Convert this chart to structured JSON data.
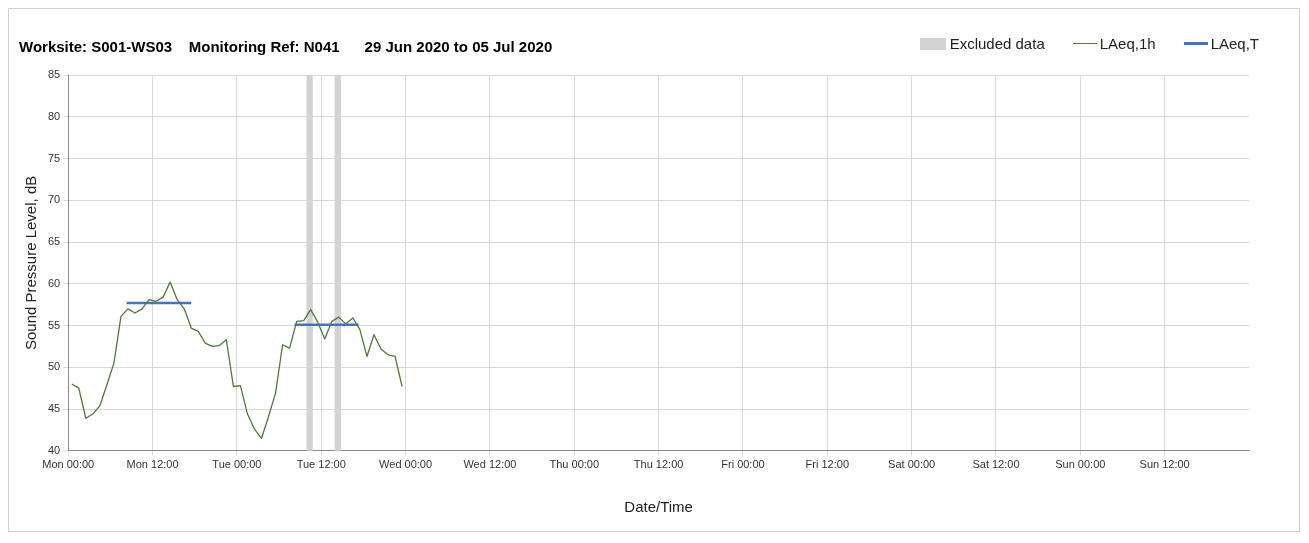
{
  "chart_data": {
    "type": "line",
    "title": "Worksite: S001-WS03    Monitoring Ref: N041      29 Jun 2020 to 05 Jul 2020",
    "xlabel": "Date/Time",
    "ylabel": "Sound Pressure Level, dB",
    "series": [
      {
        "name": "LAeq,1h",
        "color": "#4e7a3a",
        "x": [
          "2020-06-29T00:30",
          "2020-06-29T01:30",
          "2020-06-29T02:30",
          "2020-06-29T03:30",
          "2020-06-29T04:30",
          "2020-06-29T05:30",
          "2020-06-29T06:30",
          "2020-06-29T07:30",
          "2020-06-29T08:30",
          "2020-06-29T09:30",
          "2020-06-29T10:30",
          "2020-06-29T11:30",
          "2020-06-29T12:30",
          "2020-06-29T13:30",
          "2020-06-29T14:30",
          "2020-06-29T15:30",
          "2020-06-29T16:30",
          "2020-06-29T17:30",
          "2020-06-29T18:30",
          "2020-06-29T19:30",
          "2020-06-29T20:30",
          "2020-06-29T21:30",
          "2020-06-29T22:30",
          "2020-06-29T23:30",
          "2020-06-30T00:30",
          "2020-06-30T01:30",
          "2020-06-30T02:30",
          "2020-06-30T03:30",
          "2020-06-30T04:30",
          "2020-06-30T05:30",
          "2020-06-30T06:30",
          "2020-06-30T07:30",
          "2020-06-30T08:30",
          "2020-06-30T09:30",
          "2020-06-30T10:30",
          "2020-06-30T11:30",
          "2020-06-30T12:30",
          "2020-06-30T13:30",
          "2020-06-30T14:30",
          "2020-06-30T15:30",
          "2020-06-30T16:30",
          "2020-06-30T17:30",
          "2020-06-30T18:30",
          "2020-06-30T19:30",
          "2020-06-30T20:30",
          "2020-06-30T21:30",
          "2020-06-30T22:30",
          "2020-06-30T23:30"
        ],
        "values": [
          48.0,
          47.5,
          43.9,
          44.4,
          45.4,
          47.9,
          50.5,
          56.1,
          57.0,
          56.5,
          57.0,
          58.1,
          57.9,
          58.4,
          60.2,
          58.1,
          57.0,
          54.7,
          54.3,
          52.9,
          52.5,
          52.6,
          53.3,
          47.7,
          47.8,
          44.4,
          42.6,
          41.5,
          44.1,
          46.9,
          52.7,
          52.3,
          55.5,
          55.6,
          56.9,
          55.4,
          53.4,
          55.5,
          56.0,
          55.2,
          55.9,
          54.5,
          51.3,
          53.9,
          52.2,
          51.5,
          51.3,
          47.7
        ]
      },
      {
        "name": "LAeq,T",
        "color": "#4472c4",
        "x": [
          "2020-06-29T08:18",
          "2020-06-29T17:30",
          "2020-06-30T01:00",
          "2020-06-30T08:12",
          "2020-06-30T17:18"
        ],
        "values": [
          57.7,
          57.7,
          null,
          55.1,
          55.1
        ]
      }
    ],
    "bands": [
      {
        "axis": "x",
        "from": "2020-06-30T09:54",
        "to": "2020-06-30T10:48",
        "label": "Excluded data",
        "color": "#d3d3d3"
      },
      {
        "axis": "x",
        "from": "2020-06-30T13:54",
        "to": "2020-06-30T14:48",
        "color": "#d3d3d3"
      }
    ],
    "xlim": [
      "2020-06-29T00:00",
      "2020-07-06T00:00"
    ],
    "xticks": [
      {
        "value": "2020-06-29T00:00",
        "label": "Mon 00:00"
      },
      {
        "value": "2020-06-29T12:00",
        "label": "Mon 12:00"
      },
      {
        "value": "2020-06-30T00:00",
        "label": "Tue 00:00"
      },
      {
        "value": "2020-06-30T12:00",
        "label": "Tue 12:00"
      },
      {
        "value": "2020-07-01T00:00",
        "label": "Wed 00:00"
      },
      {
        "value": "2020-07-01T12:00",
        "label": "Wed 12:00"
      },
      {
        "value": "2020-07-02T00:00",
        "label": "Thu 00:00"
      },
      {
        "value": "2020-07-02T12:00",
        "label": "Thu 12:00"
      },
      {
        "value": "2020-07-03T00:00",
        "label": "Fri 00:00"
      },
      {
        "value": "2020-07-03T12:00",
        "label": "Fri 12:00"
      },
      {
        "value": "2020-07-04T00:00",
        "label": "Sat 00:00"
      },
      {
        "value": "2020-07-04T12:00",
        "label": "Sat 12:00"
      },
      {
        "value": "2020-07-05T00:00",
        "label": "Sun 00:00"
      },
      {
        "value": "2020-07-05T12:00",
        "label": "Sun 12:00"
      }
    ],
    "ylim": [
      40,
      85
    ],
    "yticks": [
      40,
      45,
      50,
      55,
      60,
      65,
      70,
      75,
      80,
      85
    ],
    "grid": true,
    "legend": "top right",
    "marker": "none",
    "line_style": "solid"
  }
}
